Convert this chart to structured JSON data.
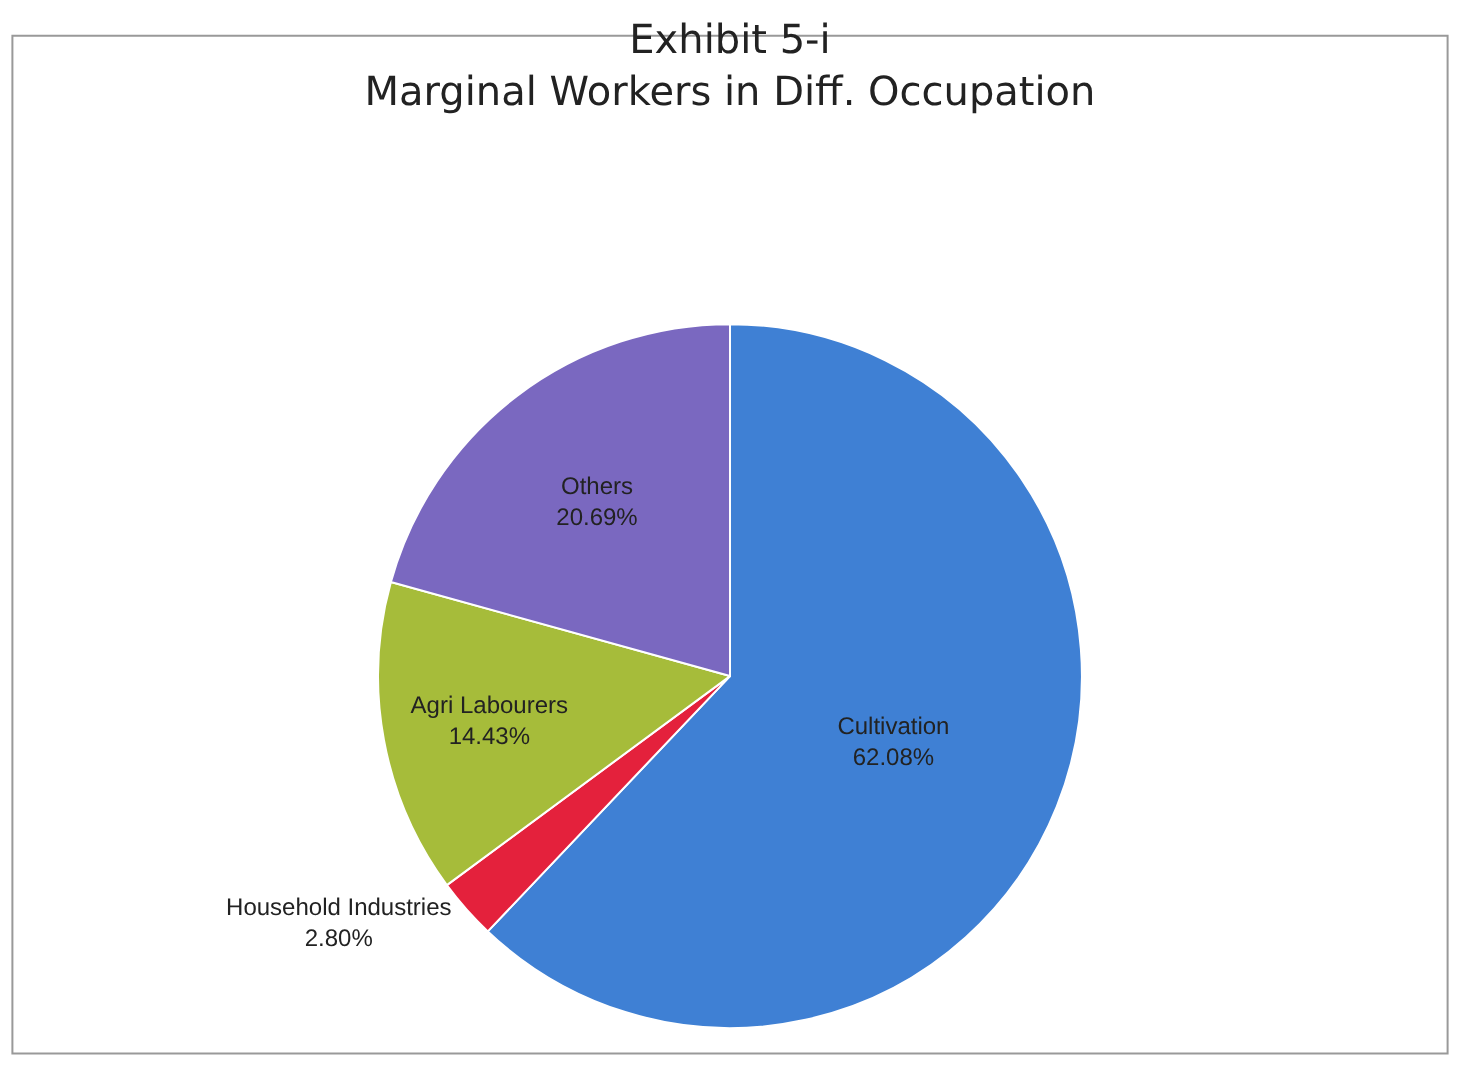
{
  "chart_data": {
    "type": "pie",
    "title": "Exhibit 5-i\nMarginal Workers in Diff. Occupation",
    "categories": [
      "Cultivation",
      "Household Industries",
      "Agri Labourers",
      "Others"
    ],
    "values": [
      62.08,
      2.8,
      14.43,
      20.69
    ],
    "value_labels": [
      "62.08%",
      "2.80%",
      "14.43%",
      "20.69%"
    ],
    "colors": [
      "#3f80d4",
      "#e4213c",
      "#a6bc3a",
      "#7a68c0"
    ],
    "legend": false
  }
}
